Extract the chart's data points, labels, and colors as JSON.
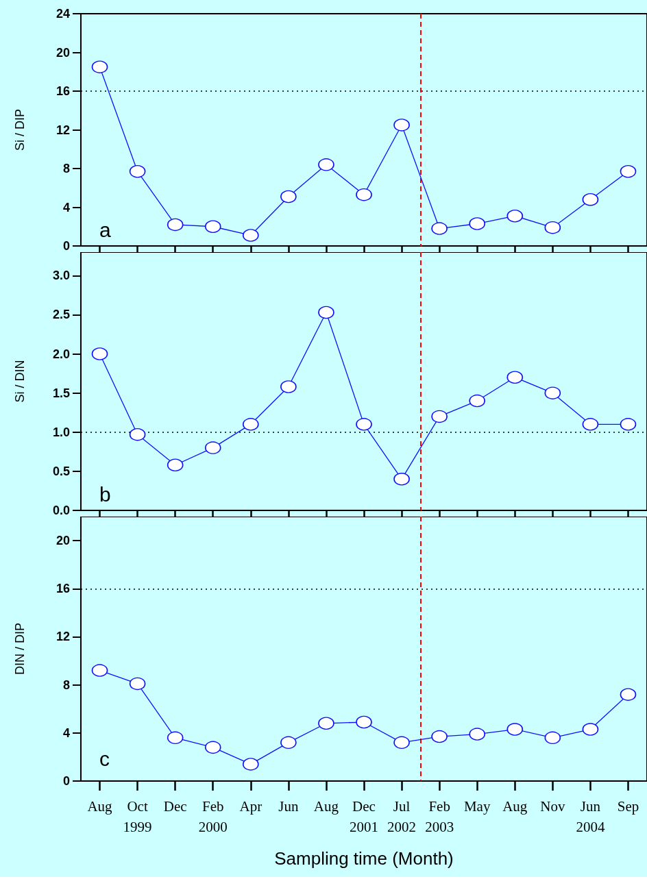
{
  "chart_data": [
    {
      "type": "line",
      "ylabel": "Si / DIP",
      "categories": [
        "Aug",
        "Oct\n1999",
        "Dec",
        "Feb\n2000",
        "Apr",
        "Jun",
        "Aug",
        "Dec\n2001",
        "Jul\n2002",
        "Feb\n2003",
        "May",
        "Aug",
        "Nov",
        "Jun\n2004",
        "Sep"
      ],
      "ylim": [
        0,
        24
      ],
      "yticks": [
        0,
        4,
        8,
        12,
        16,
        20,
        24
      ],
      "tick_labels": "y",
      "marker": "circle",
      "grid": false,
      "series": [
        {
          "color": "#1010ff",
          "values": [
            18.5,
            7.7,
            2.2,
            2.0,
            1.1,
            5.1,
            8.4,
            5.3,
            12.5,
            1.8,
            2.3,
            3.1,
            1.9,
            4.8,
            7.7
          ]
        }
      ],
      "ref_lines": [
        {
          "axis": "y",
          "value": 16,
          "color": "#000000",
          "line_style": "dotted"
        },
        {
          "axis": "x",
          "value": "Jul\n2002",
          "color": "#ff0000",
          "line_style": "dashed"
        }
      ],
      "annotations": [
        "a"
      ]
    },
    {
      "type": "line",
      "ylabel": "Si / DIN",
      "categories": [
        "Aug",
        "Oct\n1999",
        "Dec",
        "Feb\n2000",
        "Apr",
        "Jun",
        "Aug",
        "Dec\n2001",
        "Jul\n2002",
        "Feb\n2003",
        "May",
        "Aug",
        "Nov",
        "Jun\n2004",
        "Sep"
      ],
      "ylim": [
        0,
        3.3
      ],
      "yticks": [
        {
          "value": 0,
          "label": "0.0"
        },
        0.5,
        {
          "value": 1,
          "label": "1.0"
        },
        1.5,
        {
          "value": 2,
          "label": "2.0"
        },
        2.5,
        {
          "value": 3,
          "label": "3.0"
        }
      ],
      "tick_labels": "y",
      "marker": "circle",
      "grid": false,
      "series": [
        {
          "color": "#1010ff",
          "values": [
            2.0,
            0.97,
            0.58,
            0.8,
            1.1,
            1.58,
            2.53,
            1.1,
            0.4,
            1.2,
            1.4,
            1.7,
            1.5,
            1.1,
            1.1
          ]
        }
      ],
      "ref_lines": [
        {
          "axis": "y",
          "value": 1,
          "color": "#000000",
          "line_style": "dotted"
        },
        {
          "axis": "x",
          "value": "Jul\n2002",
          "color": "#ff0000",
          "line_style": "dashed"
        }
      ],
      "annotations": [
        "b"
      ]
    },
    {
      "type": "line",
      "ylabel": "DIN / DIP",
      "xlabel": "Sampling time (Month)",
      "categories": [
        "Aug",
        "Oct\n1999",
        "Dec",
        "Feb\n2000",
        "Apr",
        "Jun",
        "Aug",
        "Dec\n2001",
        "Jul\n2002",
        "Feb\n2003",
        "May",
        "Aug",
        "Nov",
        "Jun\n2004",
        "Sep"
      ],
      "ylim": [
        0,
        22
      ],
      "yticks": [
        0,
        4,
        8,
        12,
        16,
        20
      ],
      "marker": "circle",
      "grid": false,
      "series": [
        {
          "color": "#1010ff",
          "values": [
            9.2,
            8.1,
            3.6,
            2.8,
            1.4,
            3.2,
            4.8,
            4.9,
            3.2,
            3.7,
            3.9,
            4.3,
            3.6,
            4.3,
            7.2
          ]
        }
      ],
      "ref_lines": [
        {
          "axis": "y",
          "value": 16,
          "color": "#000000",
          "line_style": "dotted"
        },
        {
          "axis": "x",
          "value": "Jul\n2002",
          "color": "#ff0000",
          "line_style": "dashed"
        }
      ],
      "annotations": [
        "c"
      ]
    }
  ]
}
